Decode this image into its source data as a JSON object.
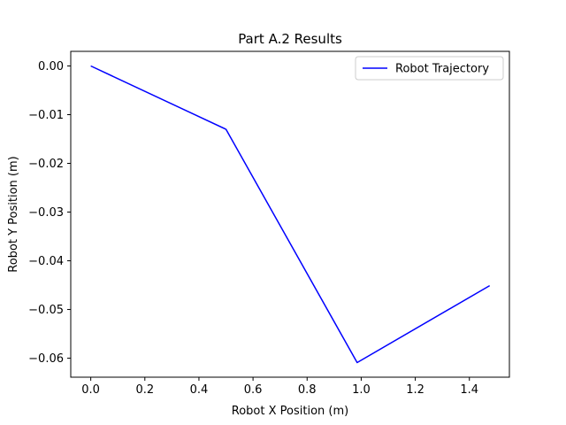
{
  "chart_data": {
    "type": "line",
    "title": "Part A.2 Results",
    "xlabel": "Robot X Position (m)",
    "ylabel": "Robot Y Position (m)",
    "xlim": [
      -0.074,
      1.548
    ],
    "ylim": [
      -0.0639,
      0.003
    ],
    "xticks": [
      0.0,
      0.2,
      0.4,
      0.6,
      0.8,
      1.0,
      1.2,
      1.4
    ],
    "xtick_labels": [
      "0.0",
      "0.2",
      "0.4",
      "0.6",
      "0.8",
      "1.0",
      "1.2",
      "1.4"
    ],
    "yticks": [
      0.0,
      -0.01,
      -0.02,
      -0.03,
      -0.04,
      -0.05,
      -0.06
    ],
    "ytick_labels": [
      "0.00",
      "−0.01",
      "−0.02",
      "−0.03",
      "−0.04",
      "−0.05",
      "−0.06"
    ],
    "grid": false,
    "legend_position": "top-right",
    "series": [
      {
        "name": "Robot Trajectory",
        "color": "#0000ff",
        "x": [
          0.0,
          0.5,
          0.985,
          1.475
        ],
        "y": [
          0.0,
          -0.013,
          -0.0609,
          -0.0451
        ]
      }
    ]
  }
}
